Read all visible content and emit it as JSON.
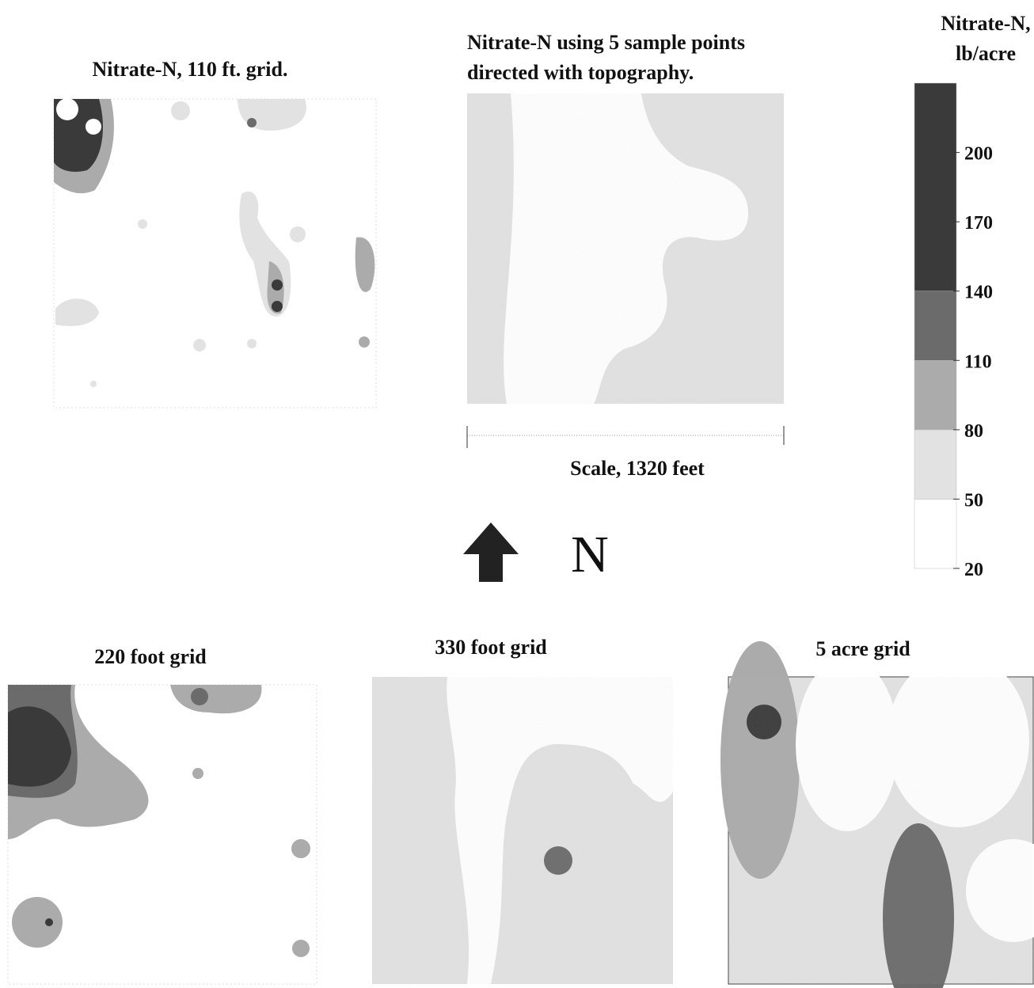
{
  "panels": [
    {
      "title": "Nitrate-N, 110 ft. grid."
    },
    {
      "title_lines": [
        "Nitrate-N using 5 sample points",
        "directed with topography."
      ]
    },
    {
      "title": "220 foot grid"
    },
    {
      "title": "330 foot grid"
    },
    {
      "title": "5 acre grid"
    }
  ],
  "scale_label": "Scale, 1320 feet",
  "north_label": "N",
  "legend": {
    "title_lines": [
      "Nitrate-N,",
      "lb/acre"
    ],
    "range": [
      20,
      230
    ],
    "ticks": [
      20,
      50,
      80,
      110,
      140,
      170,
      200
    ],
    "bands": [
      {
        "from": 20,
        "to": 50,
        "color": "#ffffff"
      },
      {
        "from": 50,
        "to": 80,
        "color": "#e2e2e2"
      },
      {
        "from": 80,
        "to": 110,
        "color": "#ababab"
      },
      {
        "from": 110,
        "to": 140,
        "color": "#6b6b6b"
      },
      {
        "from": 140,
        "to": 230,
        "color": "#3a3a3a"
      }
    ]
  }
}
